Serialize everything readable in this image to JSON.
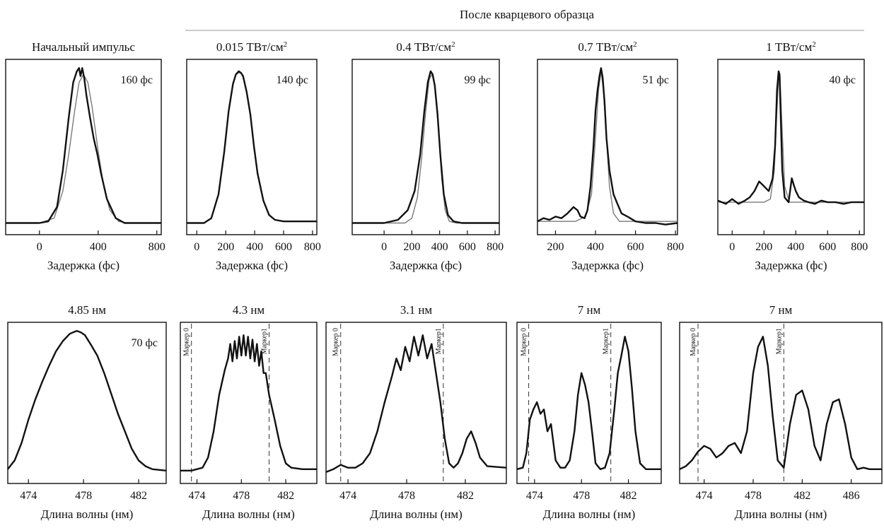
{
  "header": {
    "title": "После кварцевого образца"
  },
  "chart_data": [
    {
      "type": "line",
      "title": "Начальный импульс",
      "annotation": "160 фс",
      "xlabel": "Задержка (фс)",
      "xlim": [
        -230,
        830
      ],
      "xticks": [
        0,
        400,
        800
      ],
      "xticklabels": [
        "0",
        "400",
        "800"
      ],
      "series": [
        {
          "role": "measured",
          "x": [
            -230,
            -100,
            0,
            60,
            120,
            160,
            200,
            230,
            255,
            270,
            280,
            292,
            305,
            320,
            345,
            370,
            395,
            420,
            460,
            520,
            580,
            640,
            700,
            830
          ],
          "y": [
            0.02,
            0.02,
            0.02,
            0.03,
            0.12,
            0.35,
            0.68,
            0.9,
            0.97,
            0.99,
            0.94,
            0.99,
            0.93,
            0.82,
            0.68,
            0.55,
            0.45,
            0.33,
            0.17,
            0.05,
            0.02,
            0.02,
            0.02,
            0.02
          ]
        },
        {
          "role": "fit",
          "x": [
            -230,
            0,
            100,
            160,
            200,
            240,
            270,
            300,
            330,
            360,
            400,
            440,
            480,
            540,
            600,
            830
          ],
          "y": [
            0.02,
            0.02,
            0.05,
            0.22,
            0.45,
            0.72,
            0.9,
            0.95,
            0.9,
            0.74,
            0.47,
            0.24,
            0.1,
            0.03,
            0.02,
            0.02
          ]
        }
      ]
    },
    {
      "type": "line",
      "title": "0.015 ТВт/см",
      "title_sup": "2",
      "annotation": "140 фс",
      "xlabel": "Задержка (фс)",
      "xlim": [
        -70,
        830
      ],
      "xticks": [
        0,
        200,
        400,
        600,
        800
      ],
      "xticklabels": [
        "0",
        "200",
        "400",
        "600",
        "800"
      ],
      "series": [
        {
          "role": "measured",
          "x": [
            -70,
            50,
            100,
            150,
            190,
            220,
            250,
            270,
            290,
            305,
            320,
            345,
            370,
            395,
            420,
            460,
            500,
            540,
            600,
            700,
            830
          ],
          "y": [
            0.02,
            0.02,
            0.05,
            0.2,
            0.47,
            0.72,
            0.89,
            0.95,
            0.97,
            0.96,
            0.94,
            0.84,
            0.7,
            0.5,
            0.33,
            0.16,
            0.07,
            0.04,
            0.03,
            0.03,
            0.03
          ]
        },
        {
          "role": "fit",
          "x": [
            -70,
            50,
            100,
            150,
            190,
            220,
            250,
            270,
            290,
            305,
            320,
            345,
            370,
            395,
            420,
            460,
            500,
            540,
            600,
            700,
            830
          ],
          "y": [
            0.02,
            0.02,
            0.05,
            0.2,
            0.47,
            0.72,
            0.89,
            0.95,
            0.96,
            0.96,
            0.93,
            0.84,
            0.7,
            0.5,
            0.33,
            0.16,
            0.07,
            0.04,
            0.03,
            0.03,
            0.03
          ]
        }
      ]
    },
    {
      "type": "line",
      "title": "0.4 ТВт/см",
      "title_sup": "2",
      "annotation": "99 фс",
      "xlabel": "Задержка (фс)",
      "xlim": [
        -230,
        830
      ],
      "xticks": [
        0,
        200,
        400,
        600,
        800
      ],
      "xticklabels": [
        "0",
        "200",
        "400",
        "600",
        "800"
      ],
      "series": [
        {
          "role": "measured",
          "x": [
            -230,
            0,
            100,
            170,
            220,
            260,
            290,
            315,
            335,
            350,
            365,
            385,
            405,
            430,
            460,
            500,
            560,
            650,
            830
          ],
          "y": [
            0.02,
            0.02,
            0.04,
            0.1,
            0.22,
            0.45,
            0.72,
            0.9,
            0.97,
            0.95,
            0.88,
            0.7,
            0.45,
            0.2,
            0.07,
            0.03,
            0.02,
            0.02,
            0.02
          ]
        },
        {
          "role": "fit",
          "x": [
            -230,
            150,
            200,
            240,
            270,
            300,
            325,
            345,
            365,
            390,
            415,
            440,
            470,
            520,
            830
          ],
          "y": [
            0.02,
            0.02,
            0.05,
            0.18,
            0.42,
            0.72,
            0.92,
            0.95,
            0.88,
            0.62,
            0.3,
            0.1,
            0.03,
            0.02,
            0.02
          ]
        }
      ]
    },
    {
      "type": "line",
      "title": "0.7 ТВт/см",
      "title_sup": "2",
      "annotation": "51 фс",
      "xlabel": "Задержка (фс)",
      "xlim": [
        110,
        810
      ],
      "xticks": [
        200,
        400,
        600,
        800
      ],
      "xticklabels": [
        "200",
        "400",
        "600",
        "800"
      ],
      "series": [
        {
          "role": "measured",
          "x": [
            110,
            140,
            170,
            200,
            230,
            260,
            290,
            310,
            325,
            345,
            360,
            375,
            390,
            400,
            410,
            420,
            428,
            436,
            445,
            455,
            470,
            490,
            510,
            530,
            560,
            600,
            650,
            700,
            750,
            810
          ],
          "y": [
            0.03,
            0.05,
            0.04,
            0.06,
            0.05,
            0.08,
            0.12,
            0.1,
            0.06,
            0.05,
            0.1,
            0.25,
            0.5,
            0.72,
            0.85,
            0.94,
            0.99,
            0.93,
            0.78,
            0.55,
            0.35,
            0.2,
            0.14,
            0.08,
            0.06,
            0.03,
            0.02,
            0.02,
            0.01,
            0.02
          ]
        },
        {
          "role": "fit",
          "x": [
            110,
            300,
            350,
            380,
            400,
            415,
            428,
            440,
            455,
            470,
            490,
            520,
            810
          ],
          "y": [
            0.03,
            0.03,
            0.06,
            0.2,
            0.55,
            0.85,
            0.97,
            0.85,
            0.55,
            0.25,
            0.08,
            0.03,
            0.03
          ]
        }
      ]
    },
    {
      "type": "line",
      "title": "1 ТВт/см",
      "title_sup": "2",
      "annotation": "40 фс",
      "xlabel": "Задержка (фс)",
      "xlim": [
        -90,
        830
      ],
      "xticks": [
        0,
        200,
        400,
        600,
        800
      ],
      "xticklabels": [
        "0",
        "200",
        "400",
        "600",
        "800"
      ],
      "series": [
        {
          "role": "measured",
          "x": [
            -90,
            -40,
            0,
            40,
            80,
            110,
            140,
            170,
            200,
            230,
            255,
            270,
            282,
            292,
            298,
            305,
            315,
            330,
            355,
            375,
            390,
            400,
            420,
            450,
            480,
            520,
            560,
            600,
            650,
            700,
            750,
            830
          ],
          "y": [
            0.16,
            0.14,
            0.17,
            0.14,
            0.16,
            0.18,
            0.22,
            0.28,
            0.25,
            0.22,
            0.3,
            0.5,
            0.85,
            0.97,
            0.95,
            0.7,
            0.35,
            0.18,
            0.15,
            0.3,
            0.25,
            0.22,
            0.18,
            0.16,
            0.15,
            0.14,
            0.16,
            0.15,
            0.15,
            0.14,
            0.15,
            0.15
          ]
        },
        {
          "role": "fit",
          "x": [
            -90,
            200,
            240,
            265,
            280,
            292,
            300,
            312,
            330,
            360,
            830
          ],
          "y": [
            0.15,
            0.15,
            0.17,
            0.35,
            0.7,
            0.93,
            0.95,
            0.65,
            0.25,
            0.15,
            0.15
          ]
        }
      ]
    },
    {
      "type": "line",
      "title": "4.85 нм",
      "annotation": "70 фс",
      "xlabel": "Длина волны (нм)",
      "xlim": [
        472.5,
        484
      ],
      "xticks": [
        474,
        478,
        482
      ],
      "xticklabels": [
        "474",
        "478",
        "482"
      ],
      "series": [
        {
          "role": "measured",
          "x": [
            472.5,
            473,
            473.5,
            474,
            474.5,
            475,
            475.5,
            476,
            476.5,
            477,
            477.5,
            477.8,
            478.1,
            478.5,
            479,
            479.5,
            480,
            480.5,
            481,
            481.5,
            482,
            482.5,
            483,
            484
          ],
          "y": [
            0.04,
            0.1,
            0.22,
            0.38,
            0.52,
            0.64,
            0.75,
            0.85,
            0.92,
            0.97,
            0.99,
            0.98,
            0.96,
            0.9,
            0.82,
            0.7,
            0.56,
            0.42,
            0.3,
            0.18,
            0.1,
            0.06,
            0.04,
            0.03
          ]
        }
      ],
      "markers": []
    },
    {
      "type": "line",
      "title": "4.3 нм",
      "xlabel": "Длина волны (нм)",
      "xlim": [
        472.5,
        484.8
      ],
      "xticks": [
        474,
        478,
        482
      ],
      "xticklabels": [
        "474",
        "478",
        "482"
      ],
      "series": [
        {
          "role": "measured",
          "x": [
            472.5,
            473.5,
            474.5,
            475,
            475.5,
            476,
            476.5,
            476.8,
            477,
            477.2,
            477.4,
            477.6,
            477.8,
            478,
            478.2,
            478.4,
            478.6,
            478.8,
            479,
            479.2,
            479.4,
            479.6,
            479.8,
            480,
            480.2,
            480.5,
            481,
            481.5,
            482,
            482.5,
            483.5,
            484.8
          ],
          "y": [
            0.03,
            0.03,
            0.05,
            0.12,
            0.3,
            0.55,
            0.72,
            0.8,
            0.9,
            0.78,
            0.92,
            0.8,
            0.95,
            0.82,
            0.96,
            0.82,
            0.95,
            0.8,
            0.93,
            0.78,
            0.9,
            0.75,
            0.85,
            0.7,
            0.7,
            0.55,
            0.38,
            0.2,
            0.08,
            0.05,
            0.04,
            0.04
          ]
        }
      ],
      "markers": [
        {
          "label": "Маркер 0",
          "x": 473.5
        },
        {
          "label": "Маркер1",
          "x": 480.5
        }
      ]
    },
    {
      "type": "line",
      "title": "3.1 нм",
      "xlabel": "Длина волны (нм)",
      "xlim": [
        472.5,
        484.8
      ],
      "xticks": [
        474,
        478,
        482
      ],
      "xticklabels": [
        "474",
        "478",
        "482"
      ],
      "series": [
        {
          "role": "measured",
          "x": [
            472.5,
            473,
            473.5,
            474,
            474.5,
            475,
            475.5,
            476,
            476.5,
            477,
            477.3,
            477.6,
            477.9,
            478.2,
            478.5,
            478.8,
            479.1,
            479.4,
            479.7,
            480,
            480.3,
            480.6,
            480.9,
            481.2,
            481.5,
            481.8,
            482.1,
            482.4,
            482.7,
            483,
            483.5,
            484.8
          ],
          "y": [
            0.02,
            0.04,
            0.07,
            0.05,
            0.05,
            0.08,
            0.15,
            0.3,
            0.5,
            0.68,
            0.8,
            0.72,
            0.88,
            0.78,
            0.95,
            0.82,
            0.96,
            0.8,
            0.9,
            0.7,
            0.5,
            0.25,
            0.08,
            0.05,
            0.08,
            0.15,
            0.25,
            0.3,
            0.22,
            0.12,
            0.06,
            0.05
          ]
        }
      ],
      "markers": [
        {
          "label": "Маркер 0",
          "x": 473.5
        },
        {
          "label": "Маркер1",
          "x": 480.5
        }
      ]
    },
    {
      "type": "line",
      "title": "7 нм",
      "xlabel": "Длина волны (нм)",
      "xlim": [
        472.5,
        484.8
      ],
      "xticks": [
        474,
        478,
        482
      ],
      "xticklabels": [
        "474",
        "478",
        "482"
      ],
      "series": [
        {
          "role": "measured",
          "x": [
            472.5,
            473,
            473.3,
            473.6,
            473.9,
            474.2,
            474.5,
            474.8,
            475.1,
            475.4,
            475.8,
            476.2,
            476.6,
            477,
            477.4,
            477.7,
            478,
            478.3,
            478.6,
            478.9,
            479.2,
            479.6,
            480,
            480.4,
            480.8,
            481.1,
            481.4,
            481.7,
            482,
            482.3,
            482.6,
            483,
            483.5,
            484.8
          ],
          "y": [
            0.04,
            0.05,
            0.15,
            0.38,
            0.45,
            0.5,
            0.42,
            0.45,
            0.3,
            0.35,
            0.1,
            0.05,
            0.05,
            0.1,
            0.3,
            0.55,
            0.7,
            0.62,
            0.5,
            0.3,
            0.08,
            0.04,
            0.05,
            0.15,
            0.45,
            0.7,
            0.82,
            0.95,
            0.85,
            0.6,
            0.3,
            0.08,
            0.04,
            0.04
          ]
        }
      ],
      "markers": [
        {
          "label": "Маркер 0",
          "x": 473.5
        },
        {
          "label": "Маркер1",
          "x": 480.5
        }
      ]
    },
    {
      "type": "line",
      "title": "7 нм",
      "xlabel": "Длина волны (нм)",
      "xlim": [
        472,
        488.5
      ],
      "xticks": [
        474,
        478,
        482,
        486
      ],
      "xticklabels": [
        "474",
        "478",
        "482",
        "486"
      ],
      "series": [
        {
          "role": "measured",
          "x": [
            472,
            472.5,
            473,
            473.5,
            474,
            474.5,
            475,
            475.5,
            476,
            476.5,
            477,
            477.5,
            478,
            478.4,
            478.8,
            479.2,
            479.6,
            480,
            480.5,
            481,
            481.5,
            482,
            482.5,
            483,
            483.5,
            484,
            484.5,
            485,
            485.5,
            486,
            486.5,
            487,
            487.5,
            488.5
          ],
          "y": [
            0.04,
            0.06,
            0.1,
            0.16,
            0.2,
            0.18,
            0.12,
            0.15,
            0.2,
            0.22,
            0.15,
            0.3,
            0.7,
            0.88,
            0.95,
            0.75,
            0.4,
            0.1,
            0.05,
            0.35,
            0.55,
            0.58,
            0.45,
            0.2,
            0.1,
            0.35,
            0.5,
            0.52,
            0.35,
            0.12,
            0.04,
            0.05,
            0.04,
            0.04
          ]
        }
      ],
      "markers": [
        {
          "label": "Маркер 0",
          "x": 473.5
        },
        {
          "label": "Маркер1",
          "x": 480.5
        }
      ]
    }
  ]
}
